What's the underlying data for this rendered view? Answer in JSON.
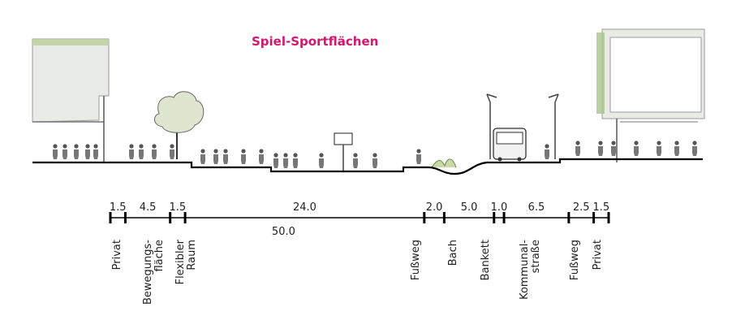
{
  "title": "Spiel-Sportflächen",
  "colors": {
    "title": "#d0186f",
    "ground": "#000000",
    "building": "#e9ebe6",
    "greenery": "#9fbf7a",
    "water": "#c8d9a8"
  },
  "dimensions": {
    "segments": [
      "1.5",
      "4.5",
      "1.5",
      "24.0",
      "2.0",
      "5.0",
      "1.0",
      "6.5",
      "2.5",
      "1.5"
    ],
    "total": "50.0"
  },
  "zones": [
    {
      "label": "Privat"
    },
    {
      "label": "Bewegungs-\nfläche"
    },
    {
      "label": "Flexibler\nRaum"
    },
    {
      "label": "Fußweg"
    },
    {
      "label": "Bach"
    },
    {
      "label": "Bankett"
    },
    {
      "label": "Kommunal-\nstraße"
    },
    {
      "label": "Fußweg"
    },
    {
      "label": "Privat"
    }
  ],
  "icons": [
    "tree-icon",
    "people-icon",
    "bus-icon",
    "streetlamp-icon",
    "basketball-hoop-icon",
    "building-icon"
  ]
}
